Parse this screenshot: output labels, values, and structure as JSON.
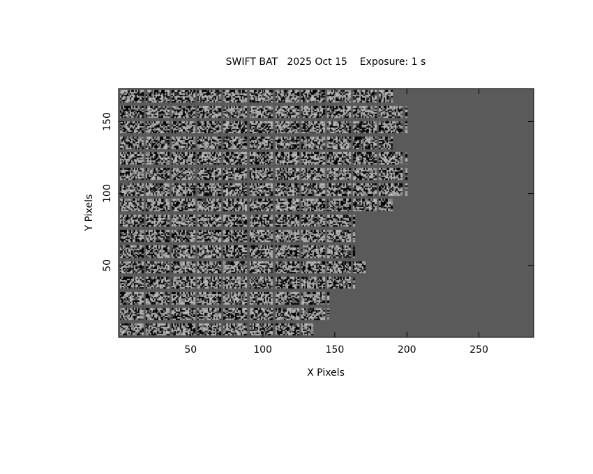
{
  "chart_data": {
    "type": "heatmap",
    "title": "SWIFT BAT   2025 Oct 15    Exposure: 1 s",
    "xlabel": "X Pixels",
    "ylabel": "Y Pixels",
    "xlim": [
      0,
      288
    ],
    "ylim": [
      0,
      173
    ],
    "xticks": [
      "50",
      "100",
      "150",
      "200",
      "250"
    ],
    "yticks": [
      "50",
      "100",
      "150"
    ],
    "colormap": "grayscale",
    "colors": {
      "background": "#5a5a5a",
      "low": "#000000",
      "mid": "#808080",
      "high": "#b8b8b8"
    },
    "module_row_extent_x": [
      135,
      146,
      146,
      164,
      171,
      164,
      164,
      164,
      190,
      200,
      200,
      200,
      190,
      200,
      200,
      190
    ]
  }
}
